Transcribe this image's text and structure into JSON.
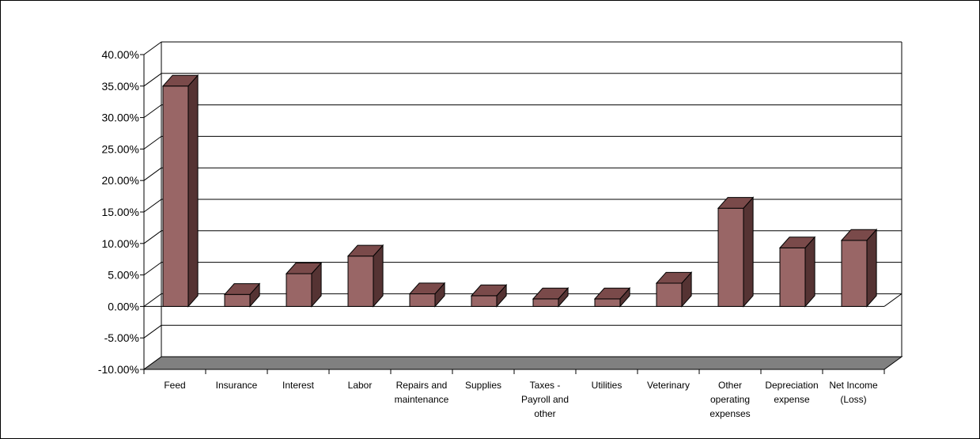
{
  "chart_data": {
    "type": "bar",
    "title": "",
    "xlabel": "",
    "ylabel": "",
    "ylim": [
      -10,
      40
    ],
    "yticks": [
      "40.00%",
      "35.00%",
      "30.00%",
      "25.00%",
      "20.00%",
      "15.00%",
      "10.00%",
      "5.00%",
      "0.00%",
      "-5.00%",
      "-10.00%"
    ],
    "categories": [
      "Feed",
      "Insurance",
      "Interest",
      "Labor",
      "Repairs and maintenance",
      "Supplies",
      "Taxes - Payroll and other",
      "Utilities",
      "Veterinary",
      "Other operating expenses",
      "Depreciation expense",
      "Net Income (Loss)"
    ],
    "category_lines": [
      [
        "Feed"
      ],
      [
        "Insurance"
      ],
      [
        "Interest"
      ],
      [
        "Labor"
      ],
      [
        "Repairs and",
        "maintenance"
      ],
      [
        "Supplies"
      ],
      [
        "Taxes -",
        "Payroll and",
        "other"
      ],
      [
        "Utilities"
      ],
      [
        "Veterinary"
      ],
      [
        "Other",
        "operating",
        "expenses"
      ],
      [
        "Depreciation",
        "expense"
      ],
      [
        "Net Income",
        "(Loss)"
      ]
    ],
    "values": [
      35.0,
      1.9,
      5.2,
      8.0,
      2.0,
      1.7,
      1.2,
      1.2,
      3.7,
      15.6,
      9.3,
      10.5
    ],
    "grid": true,
    "legend": "none",
    "colors": {
      "bar_front": "#996666",
      "bar_side": "#553333",
      "bar_top": "#7a4a4a",
      "floor": "#808080",
      "grid": "#000000"
    }
  }
}
